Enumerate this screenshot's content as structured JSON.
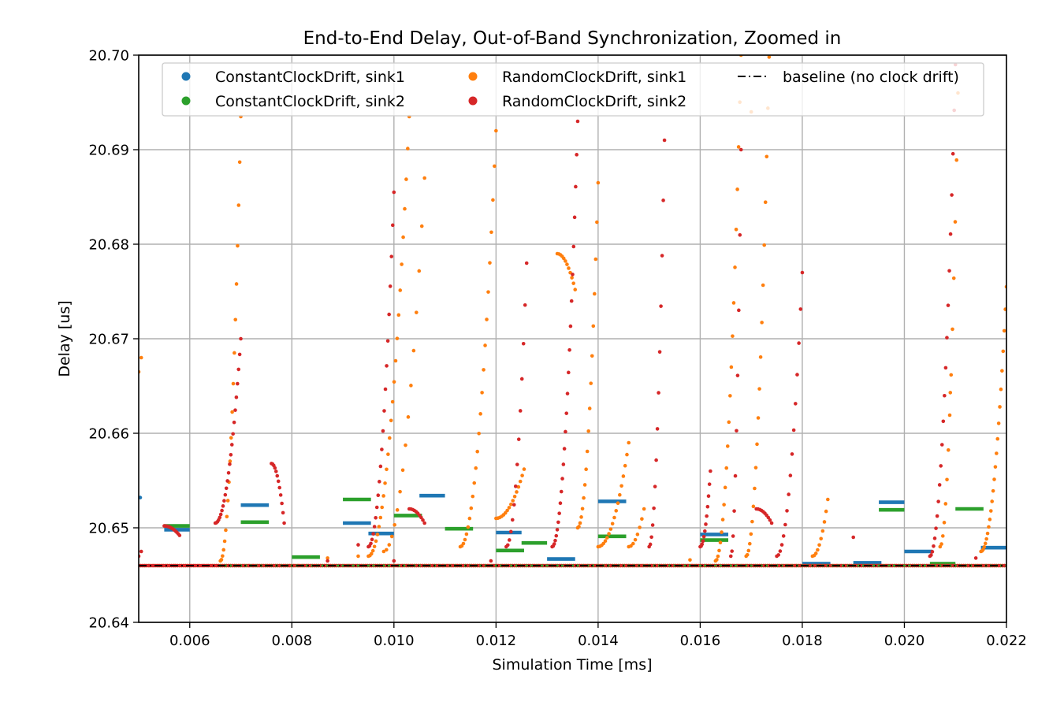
{
  "chart_data": {
    "type": "scatter",
    "title": "End-to-End Delay, Out-of-Band Synchronization, Zoomed in",
    "xlabel": "Simulation Time [ms]",
    "ylabel": "Delay [us]",
    "xlim": [
      0.005,
      0.022
    ],
    "ylim": [
      20.64,
      20.7
    ],
    "grid": true,
    "legend_position": "top",
    "x_ticks": [
      "0.006",
      "0.008",
      "0.010",
      "0.012",
      "0.014",
      "0.016",
      "0.018",
      "0.020",
      "0.022"
    ],
    "x_tick_values": [
      0.006,
      0.008,
      0.01,
      0.012,
      0.014,
      0.016,
      0.018,
      0.02,
      0.022
    ],
    "y_ticks": [
      "20.64",
      "20.65",
      "20.66",
      "20.67",
      "20.68",
      "20.69",
      "20.70"
    ],
    "y_tick_values": [
      20.64,
      20.65,
      20.66,
      20.67,
      20.68,
      20.69,
      20.7
    ],
    "baseline": {
      "name": "baseline (no clock drift)",
      "color": "#000000",
      "style": "dash-dot",
      "y": 20.646
    },
    "series": [
      {
        "name": "ConstantClockDrift, sink1",
        "color": "#1f77b4",
        "segments": [
          {
            "x0": 0.0055,
            "x1": 0.006,
            "y": 20.6498
          },
          {
            "x0": 0.007,
            "x1": 0.00755,
            "y": 20.6524
          },
          {
            "x0": 0.009,
            "x1": 0.00955,
            "y": 20.6505
          },
          {
            "x0": 0.0095,
            "x1": 0.01,
            "y": 20.6494
          },
          {
            "x0": 0.0105,
            "x1": 0.011,
            "y": 20.6534
          },
          {
            "x0": 0.012,
            "x1": 0.0125,
            "y": 20.6495
          },
          {
            "x0": 0.013,
            "x1": 0.01355,
            "y": 20.6467
          },
          {
            "x0": 0.014,
            "x1": 0.01455,
            "y": 20.6528
          },
          {
            "x0": 0.016,
            "x1": 0.01655,
            "y": 20.6493
          },
          {
            "x0": 0.018,
            "x1": 0.01855,
            "y": 20.6462
          },
          {
            "x0": 0.019,
            "x1": 0.01955,
            "y": 20.6463
          },
          {
            "x0": 0.0195,
            "x1": 0.02,
            "y": 20.6527
          },
          {
            "x0": 0.02,
            "x1": 0.02055,
            "y": 20.6475
          },
          {
            "x0": 0.0215,
            "x1": 0.022,
            "y": 20.6479
          }
        ],
        "points": [
          {
            "x": 0.00503,
            "y": 20.6532
          }
        ]
      },
      {
        "name": "ConstantClockDrift, sink2",
        "color": "#2ca02c",
        "segments": [
          {
            "x0": 0.0055,
            "x1": 0.006,
            "y": 20.6502
          },
          {
            "x0": 0.007,
            "x1": 0.00755,
            "y": 20.6506
          },
          {
            "x0": 0.008,
            "x1": 0.00855,
            "y": 20.6469
          },
          {
            "x0": 0.009,
            "x1": 0.00955,
            "y": 20.653
          },
          {
            "x0": 0.01,
            "x1": 0.01055,
            "y": 20.6513
          },
          {
            "x0": 0.011,
            "x1": 0.01155,
            "y": 20.6499
          },
          {
            "x0": 0.012,
            "x1": 0.01255,
            "y": 20.6476
          },
          {
            "x0": 0.0125,
            "x1": 0.013,
            "y": 20.6484
          },
          {
            "x0": 0.014,
            "x1": 0.01455,
            "y": 20.6491
          },
          {
            "x0": 0.016,
            "x1": 0.01655,
            "y": 20.6487
          },
          {
            "x0": 0.0195,
            "x1": 0.02,
            "y": 20.6519
          },
          {
            "x0": 0.0205,
            "x1": 0.021,
            "y": 20.6462
          },
          {
            "x0": 0.021,
            "x1": 0.02155,
            "y": 20.652
          }
        ],
        "points": []
      },
      {
        "name": "RandomClockDrift, sink1",
        "color": "#ff7f0e",
        "ramps": [
          {
            "x0": 0.005,
            "x1": 0.00505,
            "y0": 20.6665,
            "y1": 20.668,
            "n": 2
          },
          {
            "x0": 0.0066,
            "x1": 0.007,
            "y0": 20.6465,
            "y1": 20.6935,
            "n": 20
          },
          {
            "x0": 0.0095,
            "x1": 0.0103,
            "y0": 20.647,
            "y1": 20.6935,
            "n": 28
          },
          {
            "x0": 0.0098,
            "x1": 0.0106,
            "y0": 20.6475,
            "y1": 20.687,
            "n": 16
          },
          {
            "x0": 0.0113,
            "x1": 0.012,
            "y0": 20.648,
            "y1": 20.692,
            "n": 24
          },
          {
            "x0": 0.012,
            "x1": 0.01255,
            "y0": 20.651,
            "y1": 20.6562,
            "n": 16
          },
          {
            "x0": 0.0132,
            "x1": 0.01355,
            "y0": 20.679,
            "y1": 20.6752,
            "n": 12
          },
          {
            "x0": 0.0136,
            "x1": 0.014,
            "y0": 20.65,
            "y1": 20.6865,
            "n": 18
          },
          {
            "x0": 0.014,
            "x1": 0.0146,
            "y0": 20.648,
            "y1": 20.659,
            "n": 18
          },
          {
            "x0": 0.0146,
            "x1": 0.0149,
            "y0": 20.648,
            "y1": 20.652,
            "n": 8
          },
          {
            "x0": 0.0163,
            "x1": 0.0168,
            "y0": 20.6465,
            "y1": 20.7,
            "n": 22
          },
          {
            "x0": 0.0169,
            "x1": 0.01735,
            "y0": 20.647,
            "y1": 20.6998,
            "n": 20
          },
          {
            "x0": 0.0182,
            "x1": 0.0185,
            "y0": 20.647,
            "y1": 20.653,
            "n": 10
          },
          {
            "x0": 0.0207,
            "x1": 0.02105,
            "y0": 20.648,
            "y1": 20.696,
            "n": 14
          },
          {
            "x0": 0.0215,
            "x1": 0.022,
            "y0": 20.6475,
            "y1": 20.6755,
            "n": 24
          }
        ],
        "points": [
          {
            "x": 0.0057,
            "y": 20.646
          },
          {
            "x": 0.0087,
            "y": 20.6468
          },
          {
            "x": 0.0093,
            "y": 20.647
          },
          {
            "x": 0.0158,
            "y": 20.6466
          },
          {
            "x": 0.017,
            "y": 20.694
          },
          {
            "x": 0.0209,
            "y": 20.6643
          }
        ]
      },
      {
        "name": "RandomClockDrift, sink2",
        "color": "#d62728",
        "ramps": [
          {
            "x0": 0.005,
            "x1": 0.00505,
            "y0": 20.647,
            "y1": 20.6475,
            "n": 2
          },
          {
            "x0": 0.0055,
            "x1": 0.0058,
            "y0": 20.6502,
            "y1": 20.6492,
            "n": 12
          },
          {
            "x0": 0.0065,
            "x1": 0.007,
            "y0": 20.6505,
            "y1": 20.67,
            "n": 24
          },
          {
            "x0": 0.0076,
            "x1": 0.00785,
            "y0": 20.6568,
            "y1": 20.6505,
            "n": 12
          },
          {
            "x0": 0.0095,
            "x1": 0.01,
            "y0": 20.648,
            "y1": 20.6855,
            "n": 22
          },
          {
            "x0": 0.0103,
            "x1": 0.0106,
            "y0": 20.652,
            "y1": 20.6505,
            "n": 10
          },
          {
            "x0": 0.0122,
            "x1": 0.0126,
            "y0": 20.648,
            "y1": 20.678,
            "n": 14
          },
          {
            "x0": 0.0131,
            "x1": 0.0136,
            "y0": 20.648,
            "y1": 20.693,
            "n": 26
          },
          {
            "x0": 0.015,
            "x1": 0.0153,
            "y0": 20.648,
            "y1": 20.691,
            "n": 14
          },
          {
            "x0": 0.016,
            "x1": 0.0162,
            "y0": 20.648,
            "y1": 20.656,
            "n": 12
          },
          {
            "x0": 0.0166,
            "x1": 0.0168,
            "y0": 20.647,
            "y1": 20.69,
            "n": 10
          },
          {
            "x0": 0.0171,
            "x1": 0.0174,
            "y0": 20.652,
            "y1": 20.6505,
            "n": 10
          },
          {
            "x0": 0.0175,
            "x1": 0.018,
            "y0": 20.647,
            "y1": 20.677,
            "n": 16
          },
          {
            "x0": 0.0205,
            "x1": 0.021,
            "y0": 20.647,
            "y1": 20.699,
            "n": 22
          }
        ],
        "points": [
          {
            "x": 0.0087,
            "y": 20.6465
          },
          {
            "x": 0.0093,
            "y": 20.6482
          },
          {
            "x": 0.01,
            "y": 20.6465
          },
          {
            "x": 0.0119,
            "y": 20.6465
          },
          {
            "x": 0.019,
            "y": 20.649
          },
          {
            "x": 0.0214,
            "y": 20.6468
          }
        ]
      }
    ]
  }
}
